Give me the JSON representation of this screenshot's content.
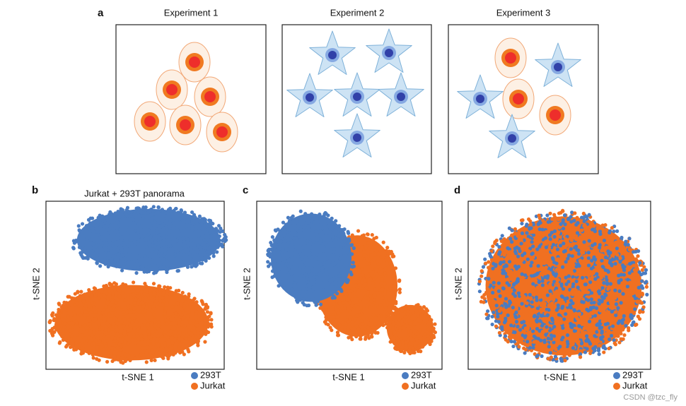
{
  "panel_a": {
    "label": "a",
    "titles": [
      "Experiment 1",
      "Experiment 2",
      "Experiment 3"
    ]
  },
  "panels": [
    {
      "label": "b",
      "title": "Jurkat + 293T panorama",
      "x_label": "t-SNE 1",
      "y_label": "t-SNE 2",
      "legend": [
        {
          "name": "293T",
          "color": "#4a7cc1"
        },
        {
          "name": "Jurkat",
          "color": "#f07021"
        }
      ]
    },
    {
      "label": "c",
      "x_label": "t-SNE 1",
      "y_label": "t-SNE 2",
      "legend": [
        {
          "name": "293T",
          "color": "#4a7cc1"
        },
        {
          "name": "Jurkat",
          "color": "#f07021"
        }
      ]
    },
    {
      "label": "d",
      "x_label": "t-SNE 1",
      "y_label": "t-SNE 2",
      "legend": [
        {
          "name": "293T",
          "color": "#4a7cc1"
        },
        {
          "name": "Jurkat",
          "color": "#f07021"
        }
      ]
    }
  ],
  "watermark": "CSDN @tzc_fly"
}
